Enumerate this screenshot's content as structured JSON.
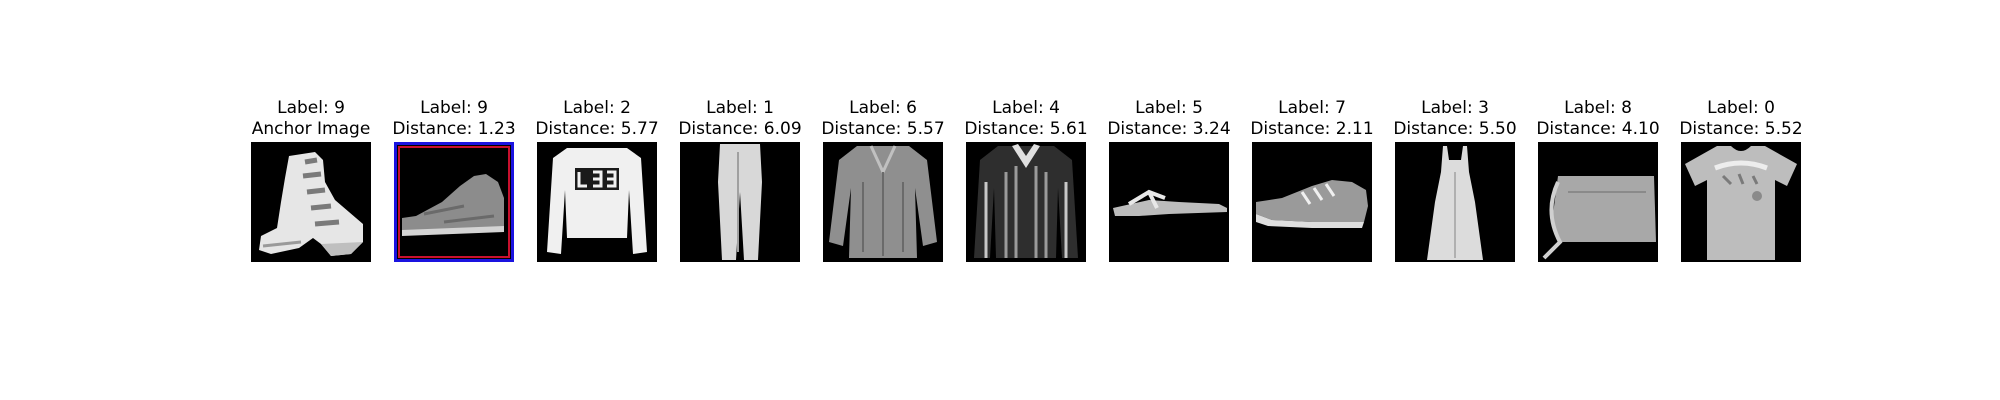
{
  "panels": [
    {
      "label": "Label: 9",
      "subtitle": "Anchor Image",
      "icon": "ankle-boot-image",
      "highlighted": false
    },
    {
      "label": "Label: 9",
      "subtitle": "Distance: 1.23",
      "icon": "ankle-boot-image",
      "highlighted": true
    },
    {
      "label": "Label: 2",
      "subtitle": "Distance: 5.77",
      "icon": "pullover-image",
      "highlighted": false
    },
    {
      "label": "Label: 1",
      "subtitle": "Distance: 6.09",
      "icon": "trouser-image",
      "highlighted": false
    },
    {
      "label": "Label: 6",
      "subtitle": "Distance: 5.57",
      "icon": "shirt-image",
      "highlighted": false
    },
    {
      "label": "Label: 4",
      "subtitle": "Distance: 5.61",
      "icon": "coat-image",
      "highlighted": false
    },
    {
      "label": "Label: 5",
      "subtitle": "Distance: 3.24",
      "icon": "sandal-image",
      "highlighted": false
    },
    {
      "label": "Label: 7",
      "subtitle": "Distance: 2.11",
      "icon": "sneaker-image",
      "highlighted": false
    },
    {
      "label": "Label: 3",
      "subtitle": "Distance: 5.50",
      "icon": "dress-image",
      "highlighted": false
    },
    {
      "label": "Label: 8",
      "subtitle": "Distance: 4.10",
      "icon": "bag-image",
      "highlighted": false
    },
    {
      "label": "Label: 0",
      "subtitle": "Distance: 5.52",
      "icon": "tshirt-image",
      "highlighted": false
    }
  ],
  "colors": {
    "highlight_outer": "#1a13e0",
    "highlight_inner": "#c8102e"
  }
}
